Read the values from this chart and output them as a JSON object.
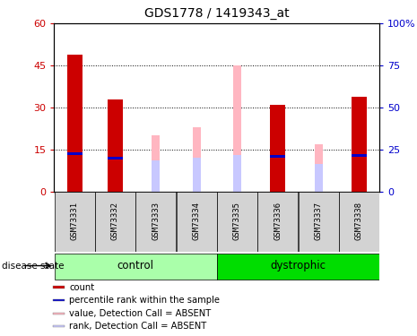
{
  "title": "GDS1778 / 1419343_at",
  "samples": [
    "GSM73331",
    "GSM73332",
    "GSM73333",
    "GSM73334",
    "GSM73335",
    "GSM73336",
    "GSM73337",
    "GSM73338"
  ],
  "red_values": [
    49,
    33,
    0,
    0,
    0,
    31,
    0,
    34
  ],
  "blue_values": [
    13.5,
    12,
    0,
    0,
    0,
    12.5,
    0,
    13
  ],
  "pink_values": [
    0,
    0,
    20,
    23,
    45,
    0,
    17,
    0
  ],
  "lavender_values": [
    0,
    0,
    11,
    12,
    13,
    0,
    10,
    0
  ],
  "left_ylim": [
    0,
    60
  ],
  "right_ylim": [
    0,
    100
  ],
  "left_yticks": [
    0,
    15,
    30,
    45,
    60
  ],
  "right_yticks": [
    0,
    25,
    50,
    75,
    100
  ],
  "left_yticklabels": [
    "0",
    "15",
    "30",
    "45",
    "60"
  ],
  "right_yticklabels": [
    "0",
    "25",
    "50",
    "75",
    "100%"
  ],
  "red_color": "#CC0000",
  "blue_color": "#0000CC",
  "pink_color": "#FFB6C1",
  "lavender_color": "#C8C8FF",
  "control_color": "#AAFFAA",
  "dystrophic_color": "#00DD00",
  "sample_box_color": "#D3D3D3",
  "legend_items": [
    {
      "label": "count",
      "color": "#CC0000"
    },
    {
      "label": "percentile rank within the sample",
      "color": "#0000CC"
    },
    {
      "label": "value, Detection Call = ABSENT",
      "color": "#FFB6C1"
    },
    {
      "label": "rank, Detection Call = ABSENT",
      "color": "#C8C8FF"
    }
  ]
}
